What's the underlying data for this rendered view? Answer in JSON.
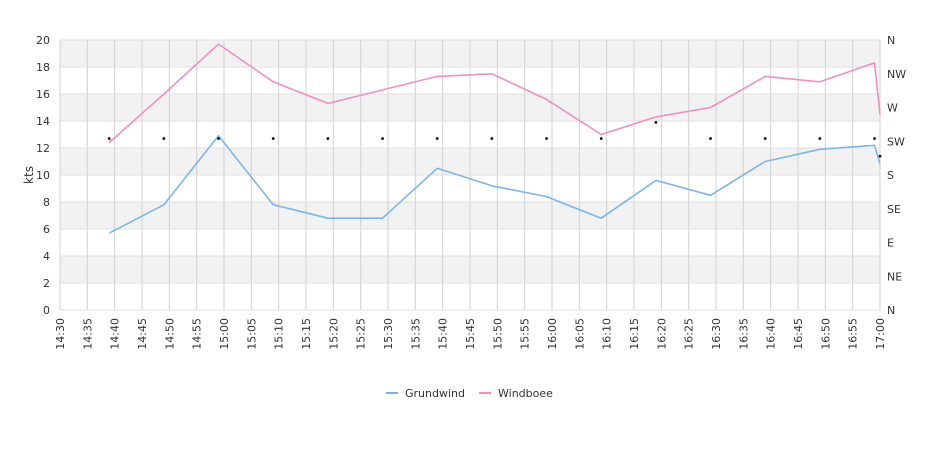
{
  "chart_data": {
    "type": "line",
    "ylabel": "kts",
    "ylim": [
      0,
      20
    ],
    "y_ticks": [
      "0",
      "2",
      "4",
      "6",
      "8",
      "10",
      "12",
      "14",
      "16",
      "18",
      "20"
    ],
    "right_axis_labels": [
      "N",
      "NE",
      "E",
      "SE",
      "S",
      "SW",
      "W",
      "NW",
      "N"
    ],
    "x_ticks": [
      "14:30",
      "14:35",
      "14:40",
      "14:45",
      "14:50",
      "14:55",
      "15:00",
      "15:05",
      "15:10",
      "15:15",
      "15:20",
      "15:25",
      "15:30",
      "15:35",
      "15:40",
      "15:45",
      "15:50",
      "15:55",
      "16:00",
      "16:05",
      "16:10",
      "16:15",
      "16:20",
      "16:25",
      "16:30",
      "16:35",
      "16:40",
      "16:45",
      "16:50",
      "16:55",
      "17:00"
    ],
    "grid": true,
    "legend_position": "bottom-center",
    "series": [
      {
        "name": "Grundwind",
        "color": "#7cb5ec",
        "points": [
          [
            "14:39",
            5.7
          ],
          [
            "14:49",
            7.8
          ],
          [
            "14:59",
            12.9
          ],
          [
            "15:09",
            7.8
          ],
          [
            "15:19",
            6.8
          ],
          [
            "15:29",
            6.8
          ],
          [
            "15:39",
            10.5
          ],
          [
            "15:49",
            9.2
          ],
          [
            "15:59",
            8.4
          ],
          [
            "16:09",
            6.8
          ],
          [
            "16:19",
            9.6
          ],
          [
            "16:29",
            8.5
          ],
          [
            "16:39",
            11.0
          ],
          [
            "16:49",
            11.9
          ],
          [
            "16:59",
            12.2
          ],
          [
            "17:00",
            10.8
          ]
        ]
      },
      {
        "name": "Windboee",
        "color": "#f190c0",
        "points": [
          [
            "14:39",
            12.4
          ],
          [
            "14:49",
            16.0
          ],
          [
            "14:59",
            19.7
          ],
          [
            "15:09",
            16.9
          ],
          [
            "15:19",
            15.3
          ],
          [
            "15:29",
            16.3
          ],
          [
            "15:39",
            17.3
          ],
          [
            "15:49",
            17.5
          ],
          [
            "15:59",
            15.6
          ],
          [
            "16:09",
            13.0
          ],
          [
            "16:19",
            14.3
          ],
          [
            "16:29",
            15.0
          ],
          [
            "16:39",
            17.3
          ],
          [
            "16:49",
            16.9
          ],
          [
            "16:59",
            18.3
          ],
          [
            "17:00",
            14.5
          ]
        ]
      }
    ],
    "direction_markers": [
      [
        "14:39",
        12.7
      ],
      [
        "14:49",
        12.7
      ],
      [
        "14:59",
        12.7
      ],
      [
        "15:09",
        12.7
      ],
      [
        "15:19",
        12.7
      ],
      [
        "15:29",
        12.7
      ],
      [
        "15:39",
        12.7
      ],
      [
        "15:49",
        12.7
      ],
      [
        "15:59",
        12.7
      ],
      [
        "16:09",
        12.7
      ],
      [
        "16:19",
        13.9
      ],
      [
        "16:29",
        12.7
      ],
      [
        "16:39",
        12.7
      ],
      [
        "16:49",
        12.7
      ],
      [
        "16:59",
        12.7
      ],
      [
        "17:00",
        11.4
      ]
    ]
  }
}
